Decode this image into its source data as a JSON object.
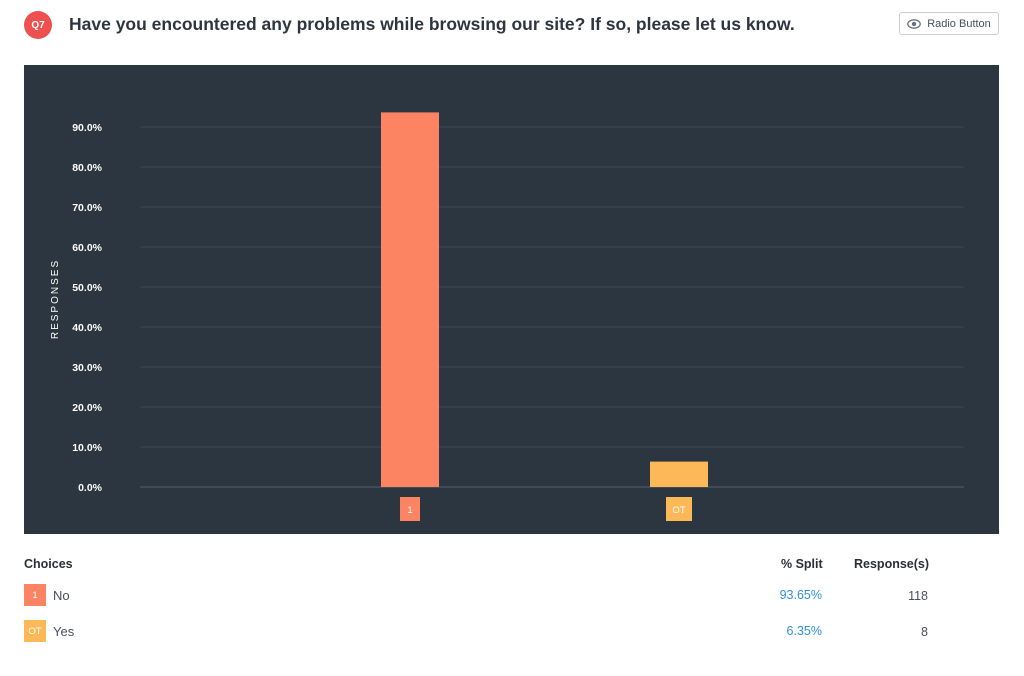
{
  "question": {
    "number": "Q7",
    "title": "Have you encountered any problems while browsing our site? If so, please let us know.",
    "type_label": "Radio Button",
    "type_icon": "eye-icon"
  },
  "table": {
    "col_choices": "Choices",
    "col_split": "% Split",
    "col_responses": "Response(s)",
    "rows": [
      {
        "code": "1",
        "label": "No",
        "split": "93.65%",
        "count": "118",
        "color": "#fd8463"
      },
      {
        "code": "OT",
        "label": "Yes",
        "split": "6.35%",
        "count": "8",
        "color": "#fdb957"
      }
    ]
  },
  "chart_data": {
    "type": "bar",
    "categories": [
      "1",
      "OT"
    ],
    "values": [
      93.65,
      6.35
    ],
    "colors": [
      "#fd8463",
      "#fdb957"
    ],
    "ylabel": "RESPONSES",
    "ylim": [
      0,
      90
    ],
    "yticks": [
      "0.0%",
      "10.0%",
      "20.0%",
      "30.0%",
      "40.0%",
      "50.0%",
      "60.0%",
      "70.0%",
      "80.0%",
      "90.0%"
    ],
    "grid": true,
    "background": "#2c3640"
  }
}
